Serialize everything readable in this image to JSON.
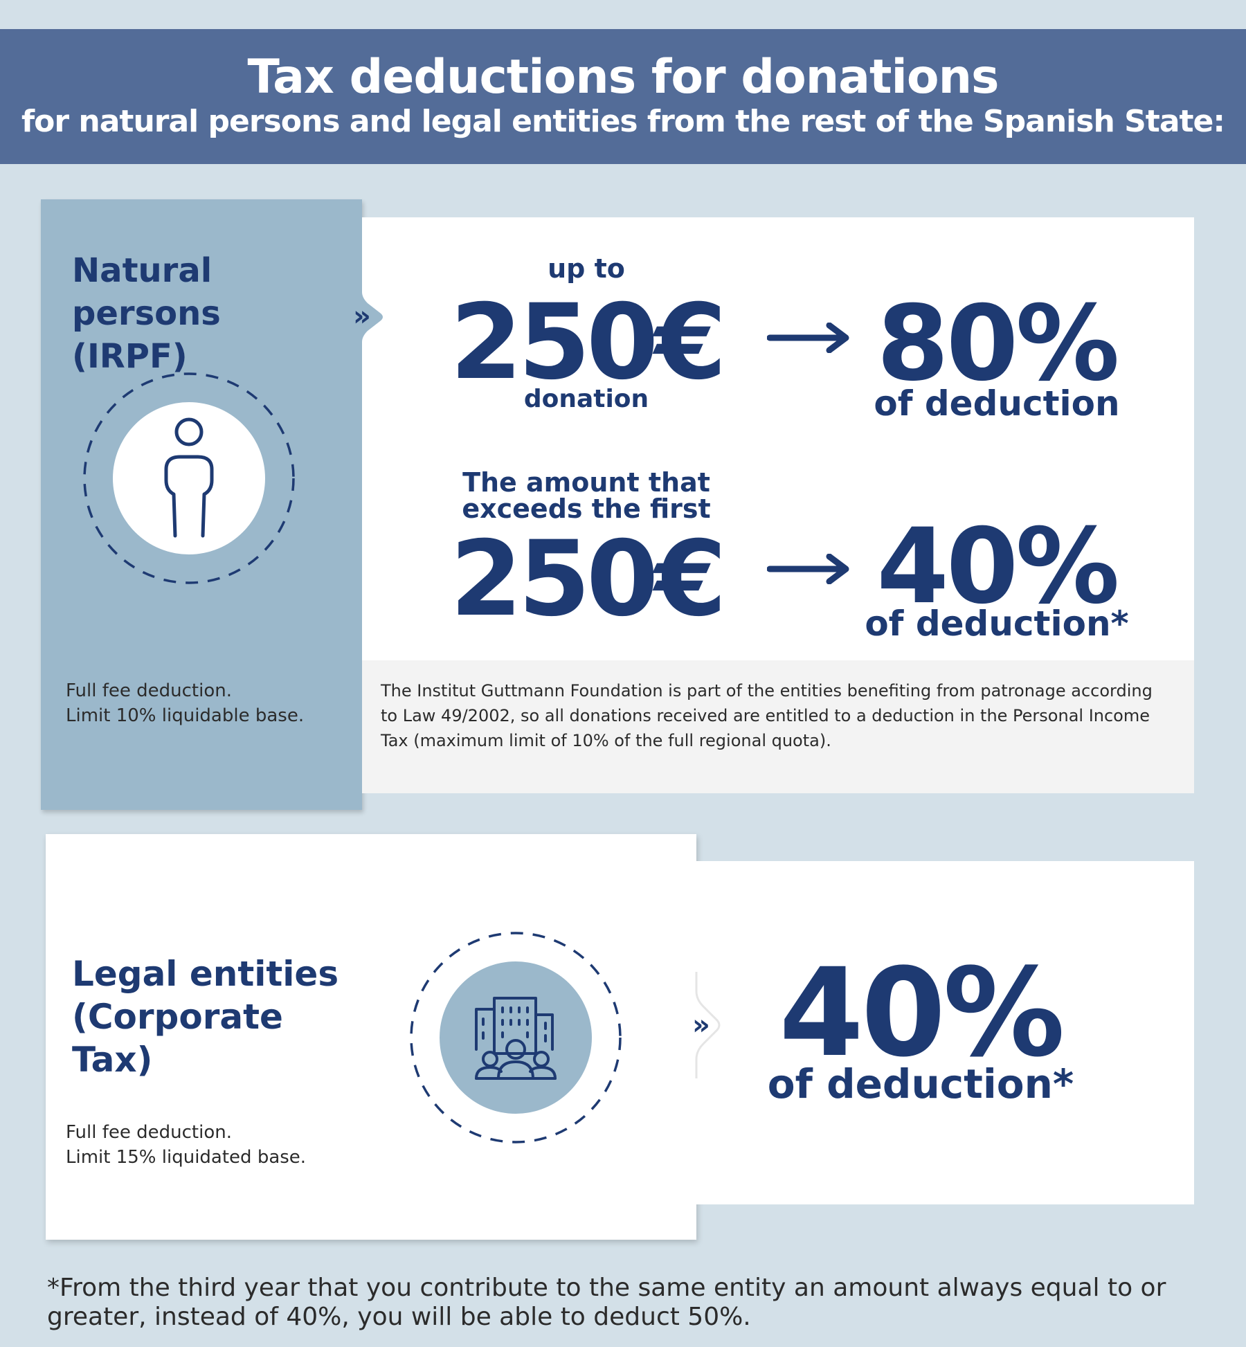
{
  "header": {
    "title": "Tax deductions for donations",
    "subtitle_pre": "for natural persons and legal entities from the ",
    "subtitle_strong": "rest of the Spanish State:"
  },
  "natural_persons": {
    "title": "Natural persons (IRPF)",
    "icon": "person-icon",
    "side_note_line1": "Full fee deduction.",
    "side_note_line2": "Limit 10% liquidable base.",
    "row1": {
      "label_top": "up to",
      "amount": "250€",
      "label_bottom": "donation",
      "percent": "80%",
      "percent_label": "of deduction"
    },
    "row2": {
      "label_top_line1": "The amount that",
      "label_top_line2": "exceeds the first",
      "amount": "250€",
      "percent": "40%",
      "percent_label": "of deduction*"
    },
    "foundation_note": "The Institut Guttmann Foundation is part of the entities benefiting from patronage according to Law 49/2002, so all donations received are entitled to a deduction in the Personal Income Tax (maximum limit of 10% of the full regional quota)."
  },
  "legal_entities": {
    "title": "Legal entities (Corporate Tax)",
    "icon": "company-building-icon",
    "side_note_line1": "Full fee deduction.",
    "side_note_line2": "Limit 15% liquidated base.",
    "percent": "40%",
    "percent_label": "of deduction*"
  },
  "footer_note": "*From the third year that you contribute to the same entity an amount always equal to or greater, instead of 40%, you will be able to deduct 50%.",
  "colors": {
    "background": "#d3e0e8",
    "header": "#536c98",
    "side_panel": "#9bb8cb",
    "navy": "#1e3a72"
  }
}
